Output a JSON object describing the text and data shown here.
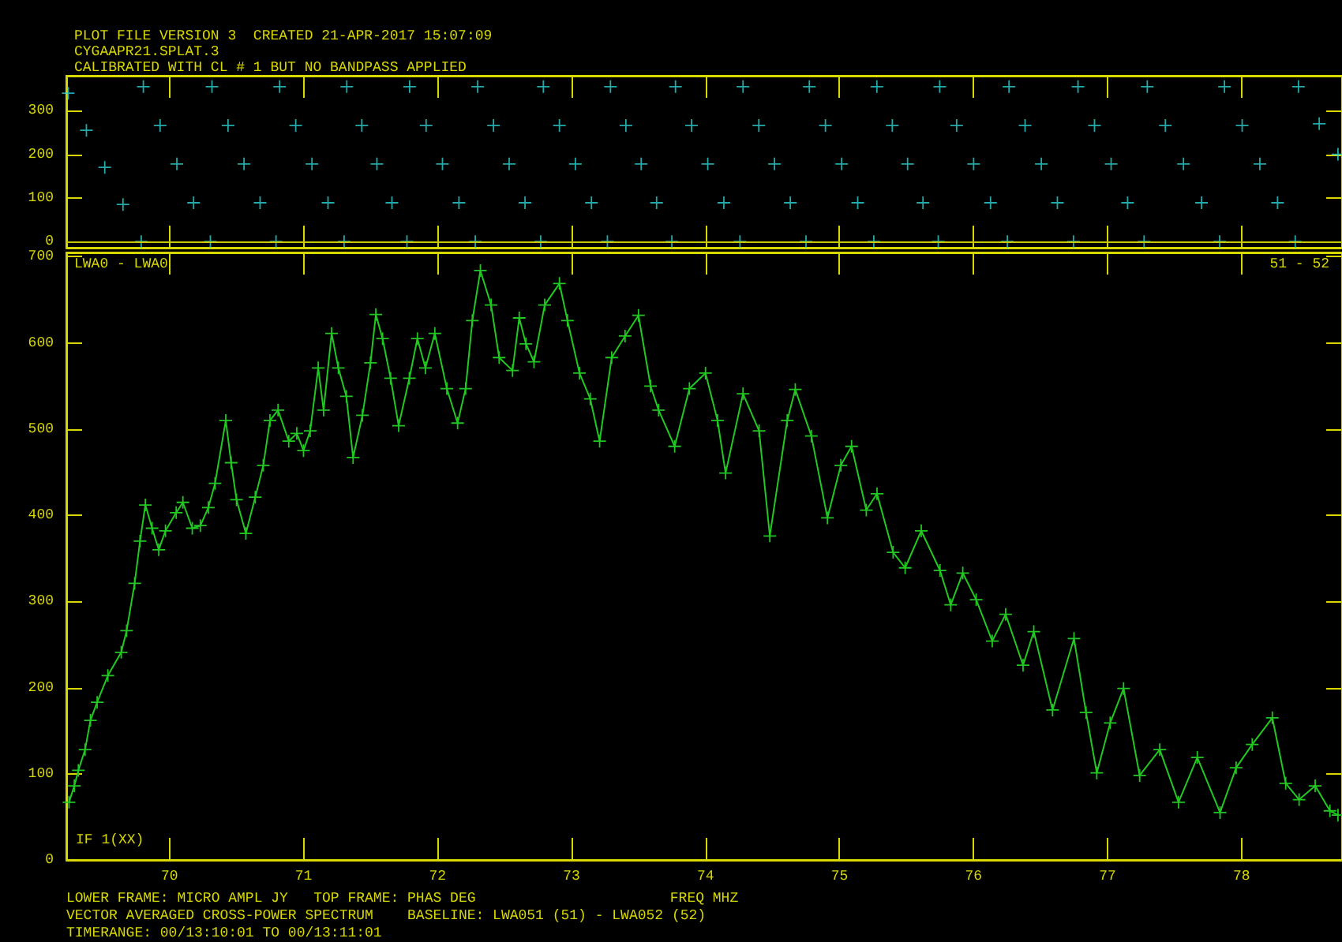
{
  "chart_data": [
    {
      "type": "scatter",
      "title": "PLOT FILE VERSION 3  CREATED 21-APR-2017 15:07:09",
      "subtitle": "CYGAAPR21.SPLAT.3\nCALIBRATED WITH CL # 1 BUT NO BANDPASS APPLIED",
      "xlim": [
        69.23,
        78.75
      ],
      "xticks": [
        70,
        71,
        72,
        73,
        74,
        75,
        76,
        77,
        78
      ],
      "ylim": [
        -14,
        380
      ],
      "yticks": [
        0,
        100,
        200,
        300
      ],
      "tick_labels": "y",
      "marker": "cross",
      "ref_lines": [
        {
          "axis": "y",
          "value": 0,
          "color": "#c8c800"
        }
      ],
      "series": [
        {
          "color": "#2ad4d4",
          "x": [
            69.244,
            69.38,
            69.517,
            69.653,
            69.789,
            69.805,
            69.93,
            70.055,
            70.18,
            70.305,
            70.317,
            70.437,
            70.556,
            70.676,
            70.795,
            70.822,
            70.942,
            71.063,
            71.183,
            71.303,
            71.323,
            71.435,
            71.548,
            71.66,
            71.772,
            71.792,
            71.915,
            72.037,
            72.16,
            72.282,
            72.3,
            72.418,
            72.535,
            72.653,
            72.77,
            72.79,
            72.91,
            73.029,
            73.149,
            73.268,
            73.291,
            73.406,
            73.52,
            73.635,
            73.749,
            73.776,
            73.896,
            74.017,
            74.137,
            74.257,
            74.28,
            74.398,
            74.515,
            74.633,
            74.75,
            74.775,
            74.895,
            75.016,
            75.136,
            75.256,
            75.279,
            75.394,
            75.508,
            75.623,
            75.737,
            75.748,
            75.874,
            76.001,
            76.127,
            76.253,
            76.265,
            76.385,
            76.506,
            76.626,
            76.746,
            76.78,
            76.903,
            77.027,
            77.15,
            77.273,
            77.297,
            77.432,
            77.567,
            77.702,
            77.837,
            77.873,
            78.005,
            78.137,
            78.269,
            78.401,
            78.425,
            78.58,
            78.72
          ],
          "values": [
            340,
            255,
            170,
            85,
            0,
            355,
            266,
            178,
            89,
            0,
            355,
            266,
            178,
            89,
            0,
            355,
            266,
            178,
            89,
            0,
            355,
            266,
            178,
            89,
            0,
            355,
            266,
            178,
            89,
            0,
            355,
            266,
            178,
            89,
            0,
            355,
            266,
            178,
            89,
            0,
            355,
            266,
            178,
            89,
            0,
            355,
            266,
            178,
            89,
            0,
            355,
            266,
            178,
            89,
            0,
            355,
            266,
            178,
            89,
            0,
            355,
            266,
            178,
            89,
            0,
            355,
            266,
            178,
            89,
            0,
            355,
            266,
            178,
            89,
            0,
            355,
            266,
            178,
            89,
            0,
            355,
            266,
            178,
            89,
            0,
            355,
            266,
            178,
            89,
            0,
            355,
            270,
            200
          ]
        }
      ]
    },
    {
      "type": "line",
      "xlabel": "FREQ MHZ",
      "xlim": [
        69.23,
        78.75
      ],
      "xticks": [
        70,
        71,
        72,
        73,
        74,
        75,
        76,
        77,
        78
      ],
      "ylim": [
        0,
        705
      ],
      "yticks": [
        0,
        100,
        200,
        300,
        400,
        500,
        600,
        700
      ],
      "marker": "cross",
      "annotations": [
        "LWA0 - LWA0",
        "51 - 52",
        "IF 1(XX)",
        "LOWER FRAME: MICRO AMPL JY   TOP FRAME: PHAS DEG",
        "VECTOR AVERAGED CROSS-POWER SPECTRUM    BASELINE: LWA051 (51) - LWA052 (52)",
        "TIMERANGE: 00/13:10:01 TO 00/13:11:01"
      ],
      "series": [
        {
          "color": "#22c822",
          "x": [
            69.25,
            69.29,
            69.32,
            69.37,
            69.41,
            69.46,
            69.54,
            69.64,
            69.68,
            69.74,
            69.78,
            69.82,
            69.87,
            69.92,
            69.97,
            70.05,
            70.1,
            70.17,
            70.23,
            70.29,
            70.34,
            70.42,
            70.46,
            70.5,
            70.57,
            70.64,
            70.7,
            70.75,
            70.81,
            70.89,
            70.95,
            71.0,
            71.05,
            71.11,
            71.15,
            71.21,
            71.26,
            71.32,
            71.37,
            71.44,
            71.5,
            71.54,
            71.59,
            71.65,
            71.71,
            71.79,
            71.85,
            71.91,
            71.98,
            72.07,
            72.15,
            72.21,
            72.26,
            72.32,
            72.4,
            72.46,
            72.56,
            72.61,
            72.66,
            72.72,
            72.8,
            72.91,
            72.97,
            73.06,
            73.14,
            73.21,
            73.3,
            73.4,
            73.5,
            73.59,
            73.65,
            73.77,
            73.88,
            74.0,
            74.09,
            74.15,
            74.28,
            74.4,
            74.48,
            74.61,
            74.67,
            74.79,
            74.91,
            75.01,
            75.09,
            75.2,
            75.28,
            75.4,
            75.49,
            75.61,
            75.75,
            75.83,
            75.92,
            76.02,
            76.14,
            76.24,
            76.37,
            76.45,
            76.59,
            76.75,
            76.84,
            76.92,
            77.02,
            77.12,
            77.24,
            77.39,
            77.53,
            77.67,
            77.84,
            77.96,
            78.08,
            78.23,
            78.33,
            78.43,
            78.55,
            78.66,
            78.72
          ],
          "values": [
            67,
            86,
            104,
            128,
            162,
            183,
            214,
            241,
            266,
            321,
            370,
            412,
            385,
            360,
            382,
            403,
            415,
            385,
            388,
            409,
            437,
            510,
            461,
            418,
            379,
            421,
            458,
            510,
            522,
            486,
            495,
            475,
            498,
            571,
            522,
            611,
            571,
            538,
            467,
            516,
            577,
            633,
            605,
            559,
            504,
            559,
            605,
            571,
            611,
            547,
            507,
            547,
            626,
            684,
            644,
            583,
            568,
            629,
            599,
            578,
            644,
            669,
            626,
            565,
            535,
            486,
            583,
            608,
            632,
            550,
            522,
            480,
            547,
            565,
            510,
            449,
            541,
            498,
            376,
            510,
            546,
            492,
            397,
            458,
            480,
            406,
            425,
            357,
            339,
            382,
            336,
            296,
            333,
            302,
            254,
            285,
            226,
            265,
            174,
            257,
            171,
            101,
            159,
            199,
            98,
            128,
            67,
            119,
            55,
            107,
            134,
            165,
            89,
            70,
            86,
            57,
            52
          ]
        }
      ]
    }
  ]
}
